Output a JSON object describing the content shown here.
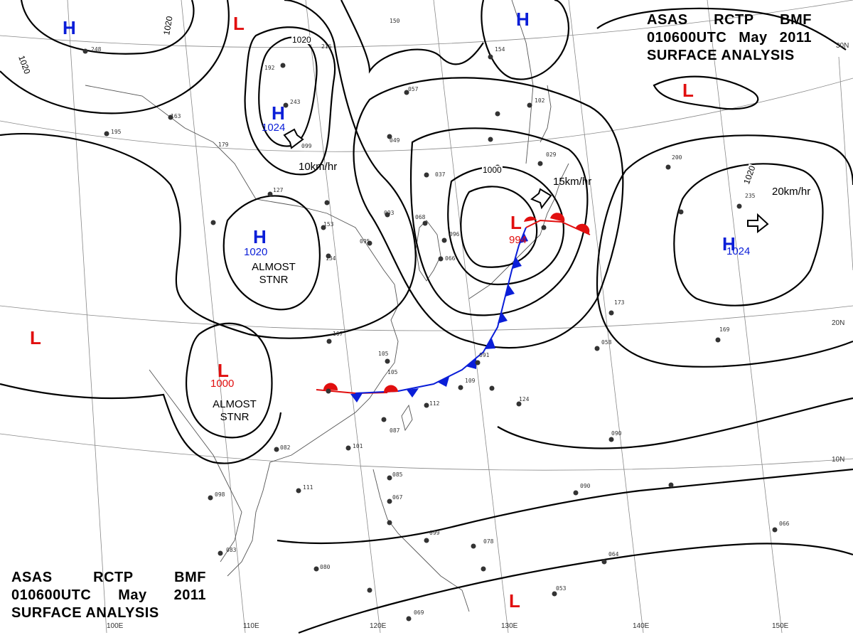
{
  "title": {
    "line1": [
      "ASAS",
      "RCTP",
      "BMF"
    ],
    "line2": [
      "010600UTC",
      "May",
      "2011"
    ],
    "line3": "SURFACE ANALYSIS"
  },
  "pressure_centers": [
    {
      "id": "h-nw",
      "type": "H",
      "value": ""
    },
    {
      "id": "l-north",
      "type": "L",
      "value": ""
    },
    {
      "id": "h-north-mongolia",
      "type": "H",
      "value": "1024"
    },
    {
      "id": "h-central-china",
      "type": "H",
      "value": "1020",
      "note": [
        "ALMOST",
        "STNR"
      ]
    },
    {
      "id": "l-west",
      "type": "L",
      "value": ""
    },
    {
      "id": "l-southwest-china",
      "type": "L",
      "value": "1000",
      "note": [
        "ALMOST",
        "STNR"
      ]
    },
    {
      "id": "h-okhotsk",
      "type": "H",
      "value": ""
    },
    {
      "id": "l-japan-sea",
      "type": "L",
      "value": "994"
    },
    {
      "id": "l-ne-pacific",
      "type": "L",
      "value": ""
    },
    {
      "id": "h-pacific",
      "type": "H",
      "value": "1024"
    },
    {
      "id": "l-south",
      "type": "L",
      "value": ""
    }
  ],
  "motion_labels": [
    {
      "id": "speed-mongolia-high",
      "text": "10km/hr"
    },
    {
      "id": "speed-japan-low",
      "text": "15km/hr"
    },
    {
      "id": "speed-pacific-high",
      "text": "20km/hr"
    }
  ],
  "isobar_labels": [
    "1020",
    "1020",
    "1020",
    "1000",
    "1020"
  ],
  "grid_labels": {
    "longitudes": [
      "100E",
      "110E",
      "120E",
      "130E",
      "140E",
      "150E"
    ],
    "latitudes": [
      "30N",
      "20N",
      "10N"
    ]
  },
  "station_numbers": [
    "248",
    "192",
    "243",
    "163",
    "195",
    "099",
    "179",
    "127",
    "153",
    "134",
    "150",
    "216",
    "057",
    "049",
    "037",
    "093",
    "068",
    "095",
    "096",
    "066",
    "154",
    "102",
    "029",
    "200",
    "235",
    "105",
    "173",
    "169",
    "058",
    "107",
    "105",
    "091",
    "109",
    "112",
    "124",
    "087",
    "101",
    "082",
    "111",
    "098",
    "083",
    "080",
    "085",
    "067",
    "099",
    "078",
    "090",
    "090",
    "066",
    "064",
    "053",
    "069"
  ],
  "fronts": {
    "warm_color": "#e10f0f",
    "cold_color": "#0a1ed8"
  },
  "colors": {
    "high": "#0a1ed8",
    "low": "#e10f0f",
    "isobar": "#000000",
    "coast": "#555555",
    "grid": "#777777"
  }
}
